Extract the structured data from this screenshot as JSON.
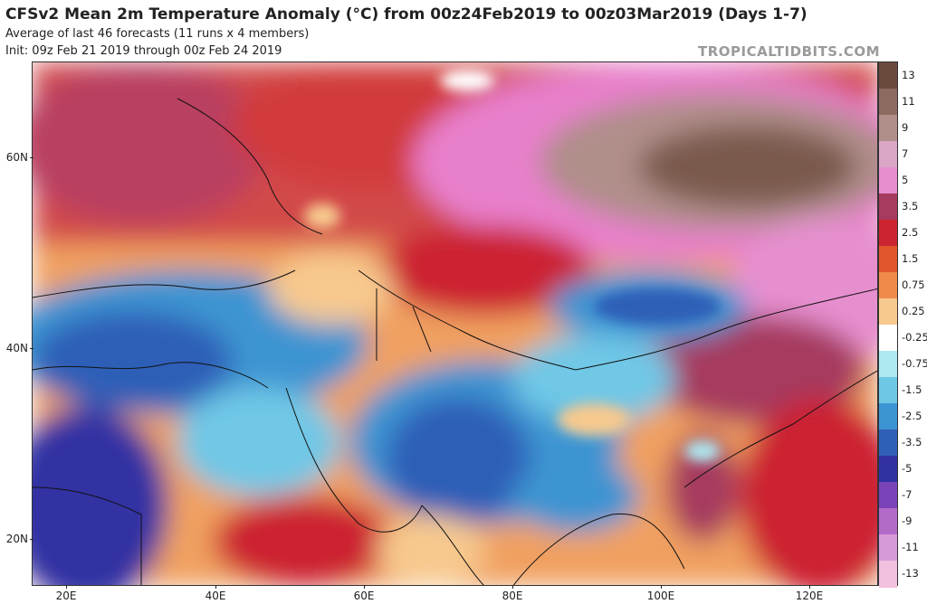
{
  "header": {
    "title": "CFSv2 Mean 2m Temperature Anomaly (°C) from 00z24Feb2019 to 00z03Mar2019 (Days 1-7)",
    "subtitle1": "Average of last 46 forecasts (11 runs x 4 members)",
    "subtitle2": "Init: 09z Feb 21 2019 through 00z Feb 24 2019",
    "brand": "TROPICALTIDBITS.COM"
  },
  "map": {
    "lat_labels": [
      "60N",
      "40N",
      "20N"
    ],
    "lon_labels": [
      "20E",
      "40E",
      "60E",
      "80E",
      "100E",
      "120E"
    ]
  },
  "colorbar": {
    "labels": [
      "13",
      "11",
      "9",
      "7",
      "5",
      "3.5",
      "2.5",
      "1.5",
      "0.75",
      "0.25",
      "-0.25",
      "-0.75",
      "-1.5",
      "-2.5",
      "-3.5",
      "-5",
      "-7",
      "-9",
      "-11",
      "-13"
    ],
    "colors": [
      "#6b4a3e",
      "#8c6a60",
      "#b08e8a",
      "#d9a6c6",
      "#e68fcf",
      "#a63a5f",
      "#cc2430",
      "#e2562e",
      "#f08a4b",
      "#f7c98e",
      "#ffffff",
      "#aee9f1",
      "#6fc7e6",
      "#3d94d2",
      "#2f5fb7",
      "#3131a3",
      "#7a44b8",
      "#b36bc9",
      "#d79ad9",
      "#f0c0de"
    ]
  }
}
